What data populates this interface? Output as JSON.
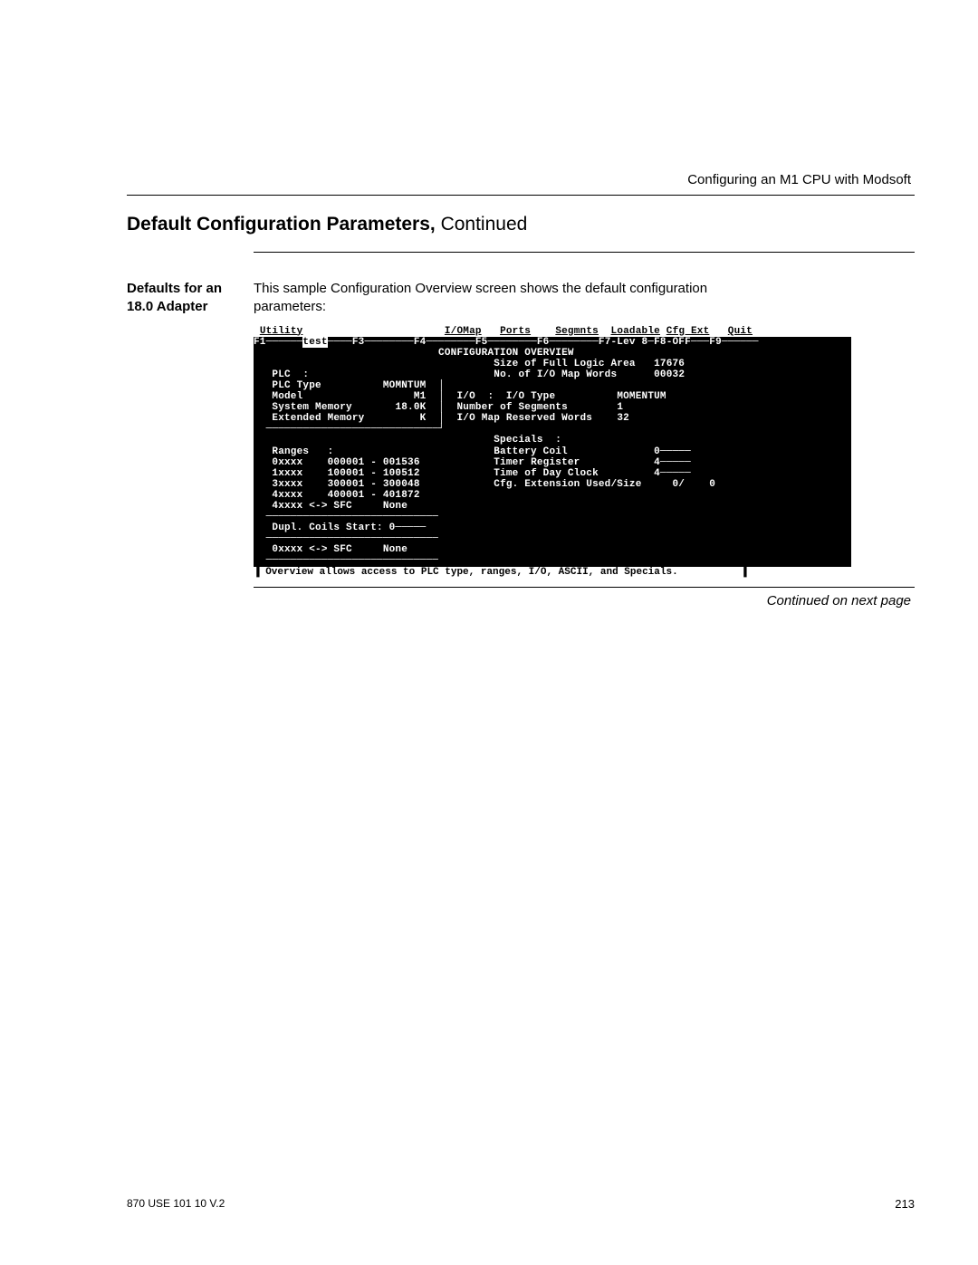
{
  "header": {
    "running_title": "Configuring an M1 CPU with Modsoft"
  },
  "section": {
    "title_bold": "Default Configuration Parameters,",
    "title_rest": " Continued"
  },
  "side": {
    "label_line1": "Defaults for an",
    "label_line2": "18.0 Adapter"
  },
  "body": {
    "intro_line1": "This sample Configuration Overview screen shows the default configuration",
    "intro_line2": "parameters:"
  },
  "terminal": {
    "menu_items": {
      "utility": "Utility",
      "iomap": "I/OMap",
      "ports": "Ports",
      "segmnts": "Segmnts",
      "loadable": "Loadable",
      "cfg_ext": "Cfg Ext",
      "quit": "Quit"
    },
    "fkeys_line": "F1──────test────F3────────F4────────F5────────F6────────F7-Lev 8─F8-OFF───F9──────",
    "fkey_test": "test",
    "title": "CONFIGURATION OVERVIEW",
    "left_block": {
      "plc_label": "PLC  :",
      "plc_type_label": "PLC Type",
      "plc_type_value": "MOMNTUM",
      "model_label": "Model",
      "model_value": "M1",
      "sys_mem_label": "System Memory",
      "sys_mem_value": "18.0K",
      "ext_mem_label": "Extended Memory",
      "ext_mem_value": "K"
    },
    "right_block1": {
      "logic_area_label": "Size of Full Logic Area",
      "logic_area_value": "17676",
      "io_map_words_label": "No. of I/O Map Words",
      "io_map_words_value": "00032",
      "io_label": "I/O  :  I/O Type",
      "io_value": "MOMENTUM",
      "num_seg_label": "Number of Segments",
      "num_seg_value": "1",
      "io_reserved_label": "I/O Map Reserved Words",
      "io_reserved_value": "32"
    },
    "ranges": {
      "header": "Ranges   :",
      "r0": "0xxxx    000001 - 001536",
      "r1": "1xxxx    100001 - 100512",
      "r3": "3xxxx    300001 - 300048",
      "r4": "4xxxx    400001 - 401872",
      "sfc": "4xxxx <-> SFC     None"
    },
    "specials": {
      "header": "Specials  :",
      "battery": "Battery Coil              0─────",
      "timer": "Timer Register            4─────",
      "tod": "Time of Day Clock         4─────",
      "cfg_ext": "Cfg. Extension Used/Size     0/    0"
    },
    "dupl_coils": "Dupl. Coils Start: 0─────",
    "bottom_sfc": "0xxxx <-> SFC     None",
    "status_line": " Overview allows access to PLC type, ranges, I/O, ASCII, and Specials."
  },
  "continued_text": "Continued on next page",
  "footer": {
    "doc_id": "870 USE 101 10 V.2",
    "page_number": "213"
  },
  "colors": {
    "terminal_bg": "#000000",
    "terminal_fg": "#ffffff",
    "page_bg": "#ffffff",
    "text": "#000000"
  }
}
